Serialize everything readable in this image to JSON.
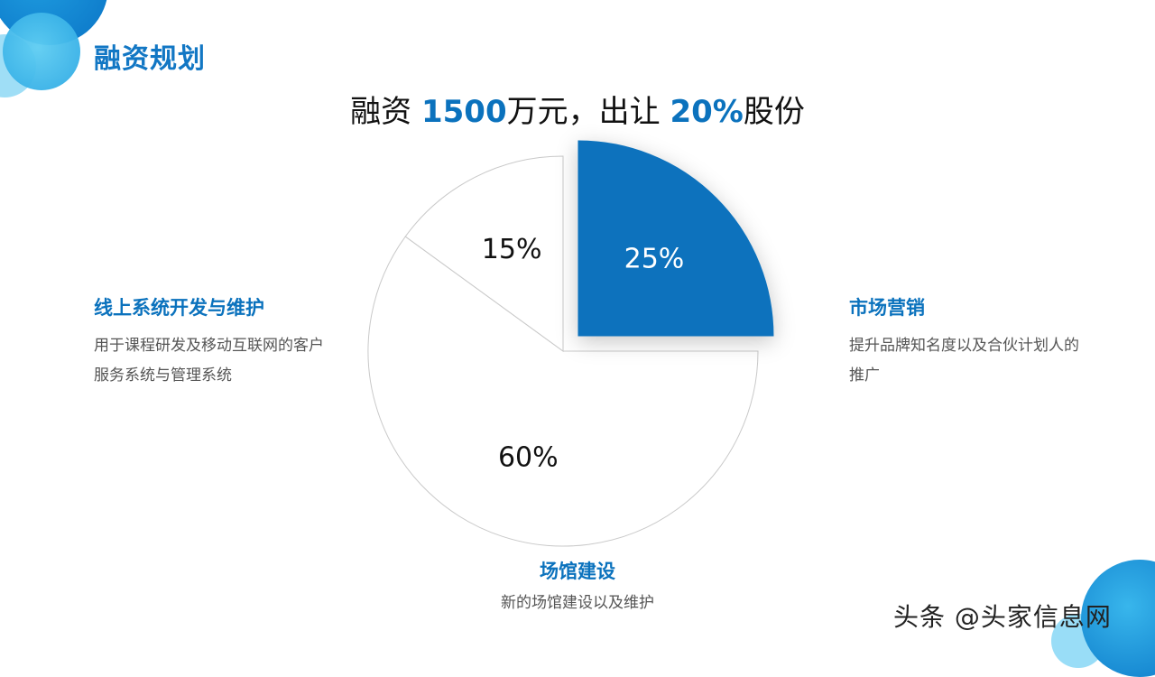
{
  "title": "融资规划",
  "headline": {
    "prefix": "融资 ",
    "amount": "1500",
    "middle": "万元，出让 ",
    "percent": "20%",
    "suffix": "股份"
  },
  "chart_data": {
    "type": "pie",
    "slices": [
      {
        "label": "市场营销",
        "value": 25,
        "display": "25%",
        "color": "#0b72bd",
        "exploded": true
      },
      {
        "label": "场馆建设",
        "value": 60,
        "display": "60%",
        "color": "#ffffff"
      },
      {
        "label": "线上系统开发与维护",
        "value": 15,
        "display": "15%",
        "color": "#ffffff"
      }
    ]
  },
  "legends": {
    "online": {
      "title": "线上系统开发与维护",
      "desc": "用于课程研发及移动互联网的客户服务系统与管理系统"
    },
    "market": {
      "title": "市场营销",
      "desc": "提升品牌知名度以及合伙计划人的推广"
    },
    "venue": {
      "title": "场馆建设",
      "desc": "新的场馆建设以及维护"
    }
  },
  "watermark": "头条 @头家信息网"
}
